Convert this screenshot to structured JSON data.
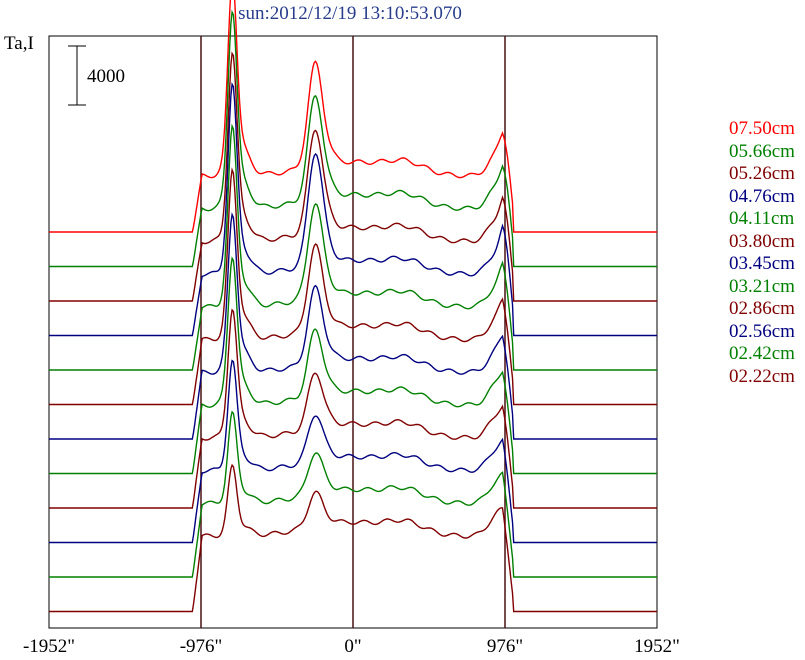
{
  "chart_data": {
    "type": "line",
    "title": "sun:2012/12/19 13:10:53.070",
    "ylabel": "Ta,I",
    "scale_bar_label": "4000",
    "scale_bar_value": 4000,
    "xlim": [
      -1952,
      1952
    ],
    "x_ticks": [
      {
        "value": -1952,
        "label": "-1952\""
      },
      {
        "value": -976,
        "label": "-976\""
      },
      {
        "value": 0,
        "label": "0\""
      },
      {
        "value": 976,
        "label": "976\""
      },
      {
        "value": 1952,
        "label": "1952\""
      }
    ],
    "vertical_lines": [
      -976,
      0,
      976
    ],
    "series": [
      {
        "name": "07.50cm",
        "color": "#ff0000",
        "peak": 1.0,
        "limb": 0.55,
        "disk": 0.32
      },
      {
        "name": "05.66cm",
        "color": "#008000",
        "peak": 1.0,
        "limb": 0.55,
        "disk": 0.33
      },
      {
        "name": "05.26cm",
        "color": "#800000",
        "peak": 0.95,
        "limb": 0.55,
        "disk": 0.34
      },
      {
        "name": "04.76cm",
        "color": "#000080",
        "peak": 0.95,
        "limb": 0.6,
        "disk": 0.35
      },
      {
        "name": "04.11cm",
        "color": "#008000",
        "peak": 0.9,
        "limb": 0.5,
        "disk": 0.36
      },
      {
        "name": "03.80cm",
        "color": "#800000",
        "peak": 0.85,
        "limb": 0.45,
        "disk": 0.37
      },
      {
        "name": "03.45cm",
        "color": "#000080",
        "peak": 0.8,
        "limb": 0.4,
        "disk": 0.38
      },
      {
        "name": "03.21cm",
        "color": "#008000",
        "peak": 0.75,
        "limb": 0.35,
        "disk": 0.39
      },
      {
        "name": "02.86cm",
        "color": "#800000",
        "peak": 0.65,
        "limb": 0.3,
        "disk": 0.4
      },
      {
        "name": "02.56cm",
        "color": "#000080",
        "peak": 0.55,
        "limb": 0.25,
        "disk": 0.41
      },
      {
        "name": "02.42cm",
        "color": "#008000",
        "peak": 0.45,
        "limb": 0.22,
        "disk": 0.42
      },
      {
        "name": "02.22cm",
        "color": "#800000",
        "peak": 0.35,
        "limb": 0.18,
        "disk": 0.43
      }
    ]
  }
}
